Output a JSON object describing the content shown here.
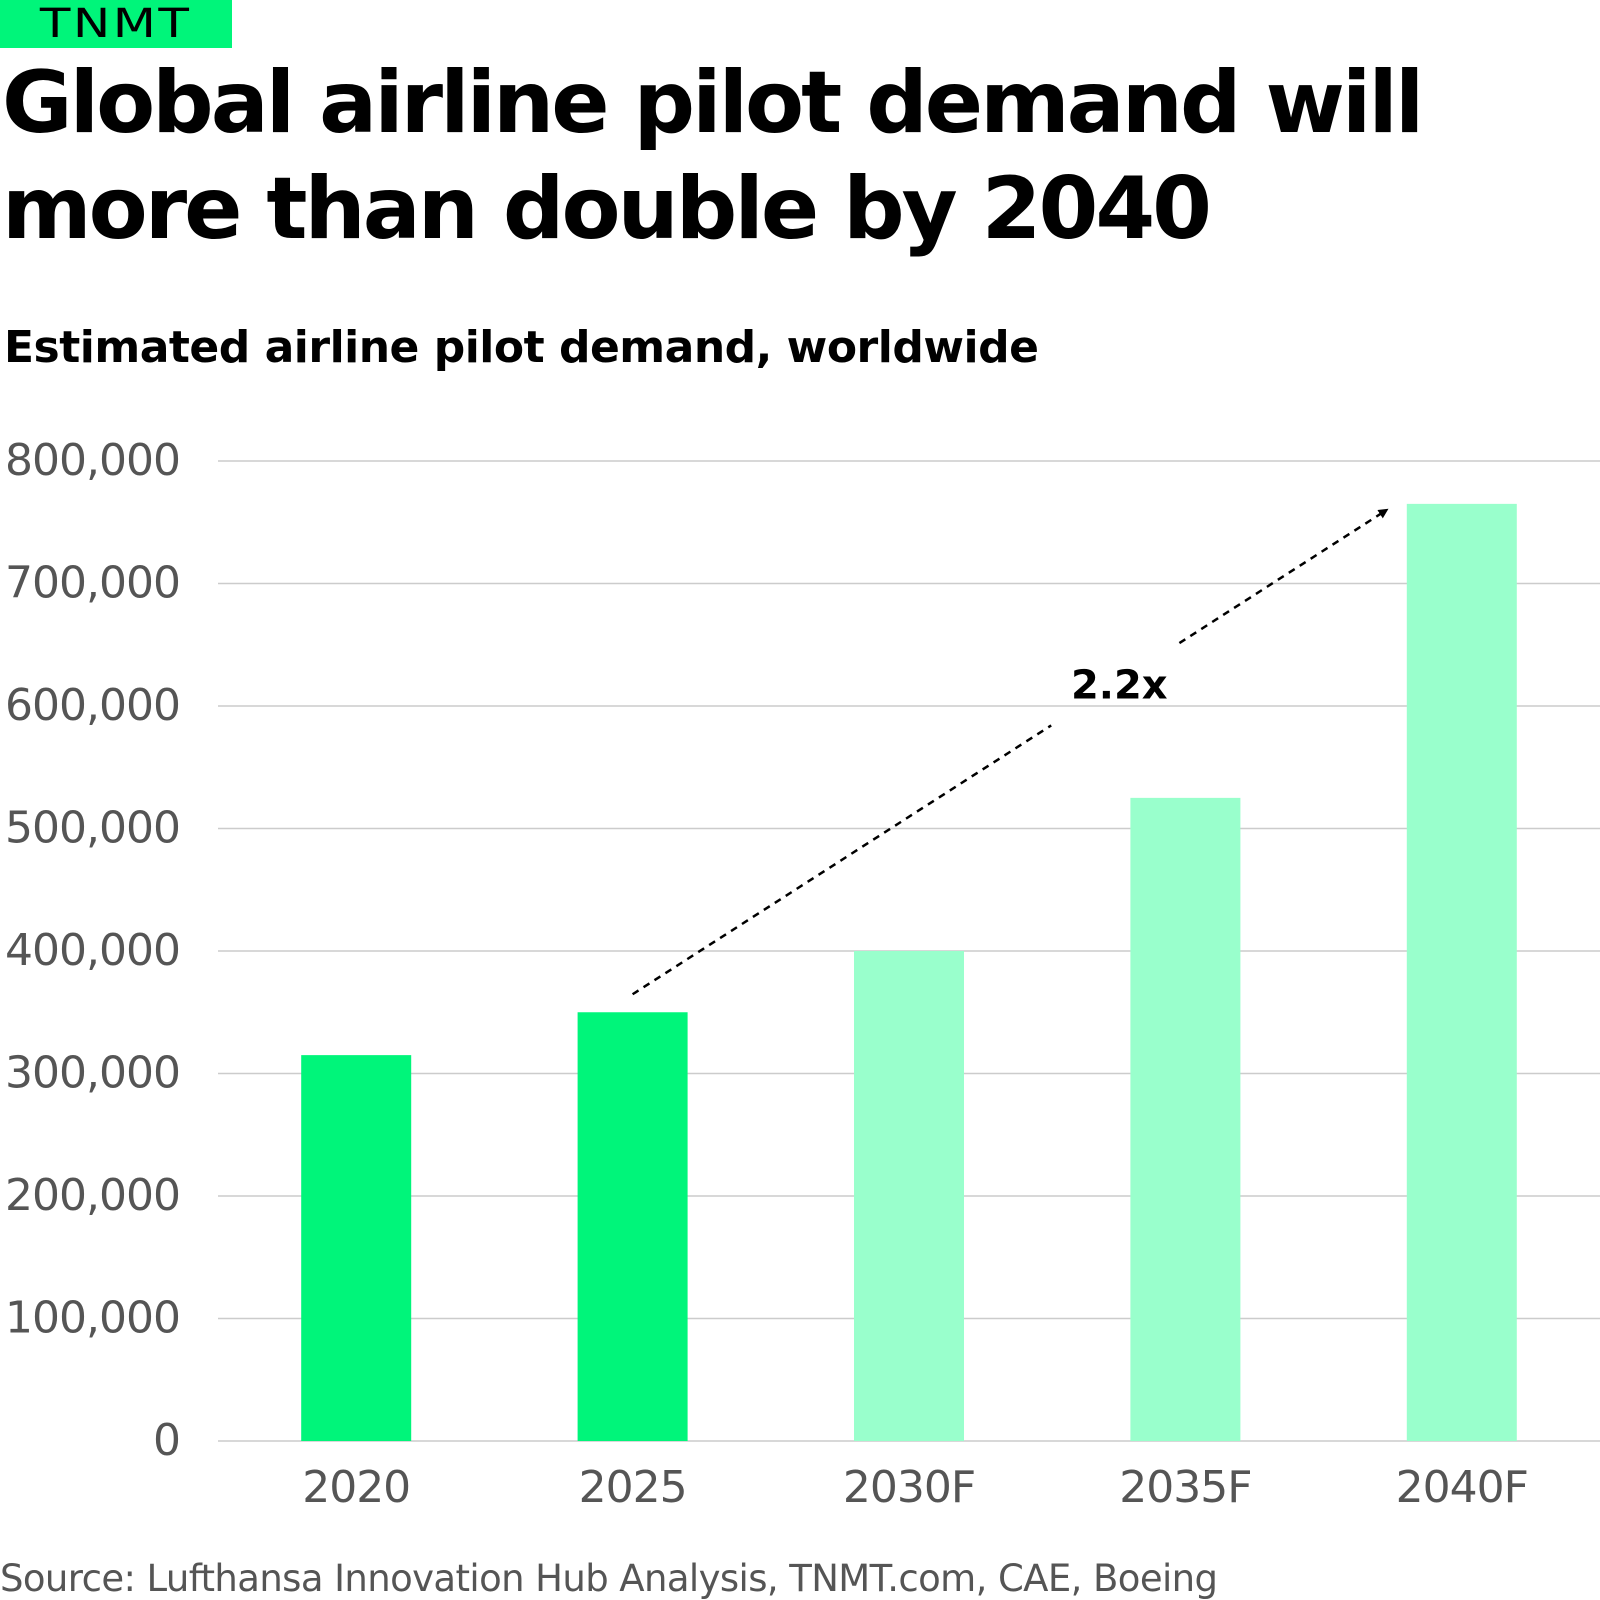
{
  "brand": {
    "logo_text": "TNMT"
  },
  "colors": {
    "actual": "#00f57a",
    "forecast": "#99ffcc",
    "brand": "#00f57a",
    "grid": "#cccccc",
    "axis_text": "#555555"
  },
  "chart_data": {
    "type": "bar",
    "title": "Global airline pilot demand will more than double by 2040",
    "subtitle": "Estimated airline pilot demand, worldwide",
    "categories": [
      "2020",
      "2025",
      "2030F",
      "2035F",
      "2040F"
    ],
    "values": [
      315000,
      350000,
      400000,
      525000,
      765000
    ],
    "forecast": [
      false,
      false,
      true,
      true,
      true
    ],
    "ylim": [
      0,
      800000
    ],
    "yticks": [
      0,
      100000,
      200000,
      300000,
      400000,
      500000,
      600000,
      700000,
      800000
    ],
    "ytick_labels": [
      "0",
      "100,000",
      "200,000",
      "300,000",
      "400,000",
      "500,000",
      "600,000",
      "700,000",
      "800,000"
    ],
    "xlabel": "",
    "ylabel": "",
    "grid": true,
    "legend": "none",
    "annotation": {
      "text": "2.2x",
      "from_category": "2025",
      "to_category": "2040F"
    }
  },
  "source": "Source: Lufthansa Innovation Hub Analysis, TNMT.com, CAE, Boeing"
}
